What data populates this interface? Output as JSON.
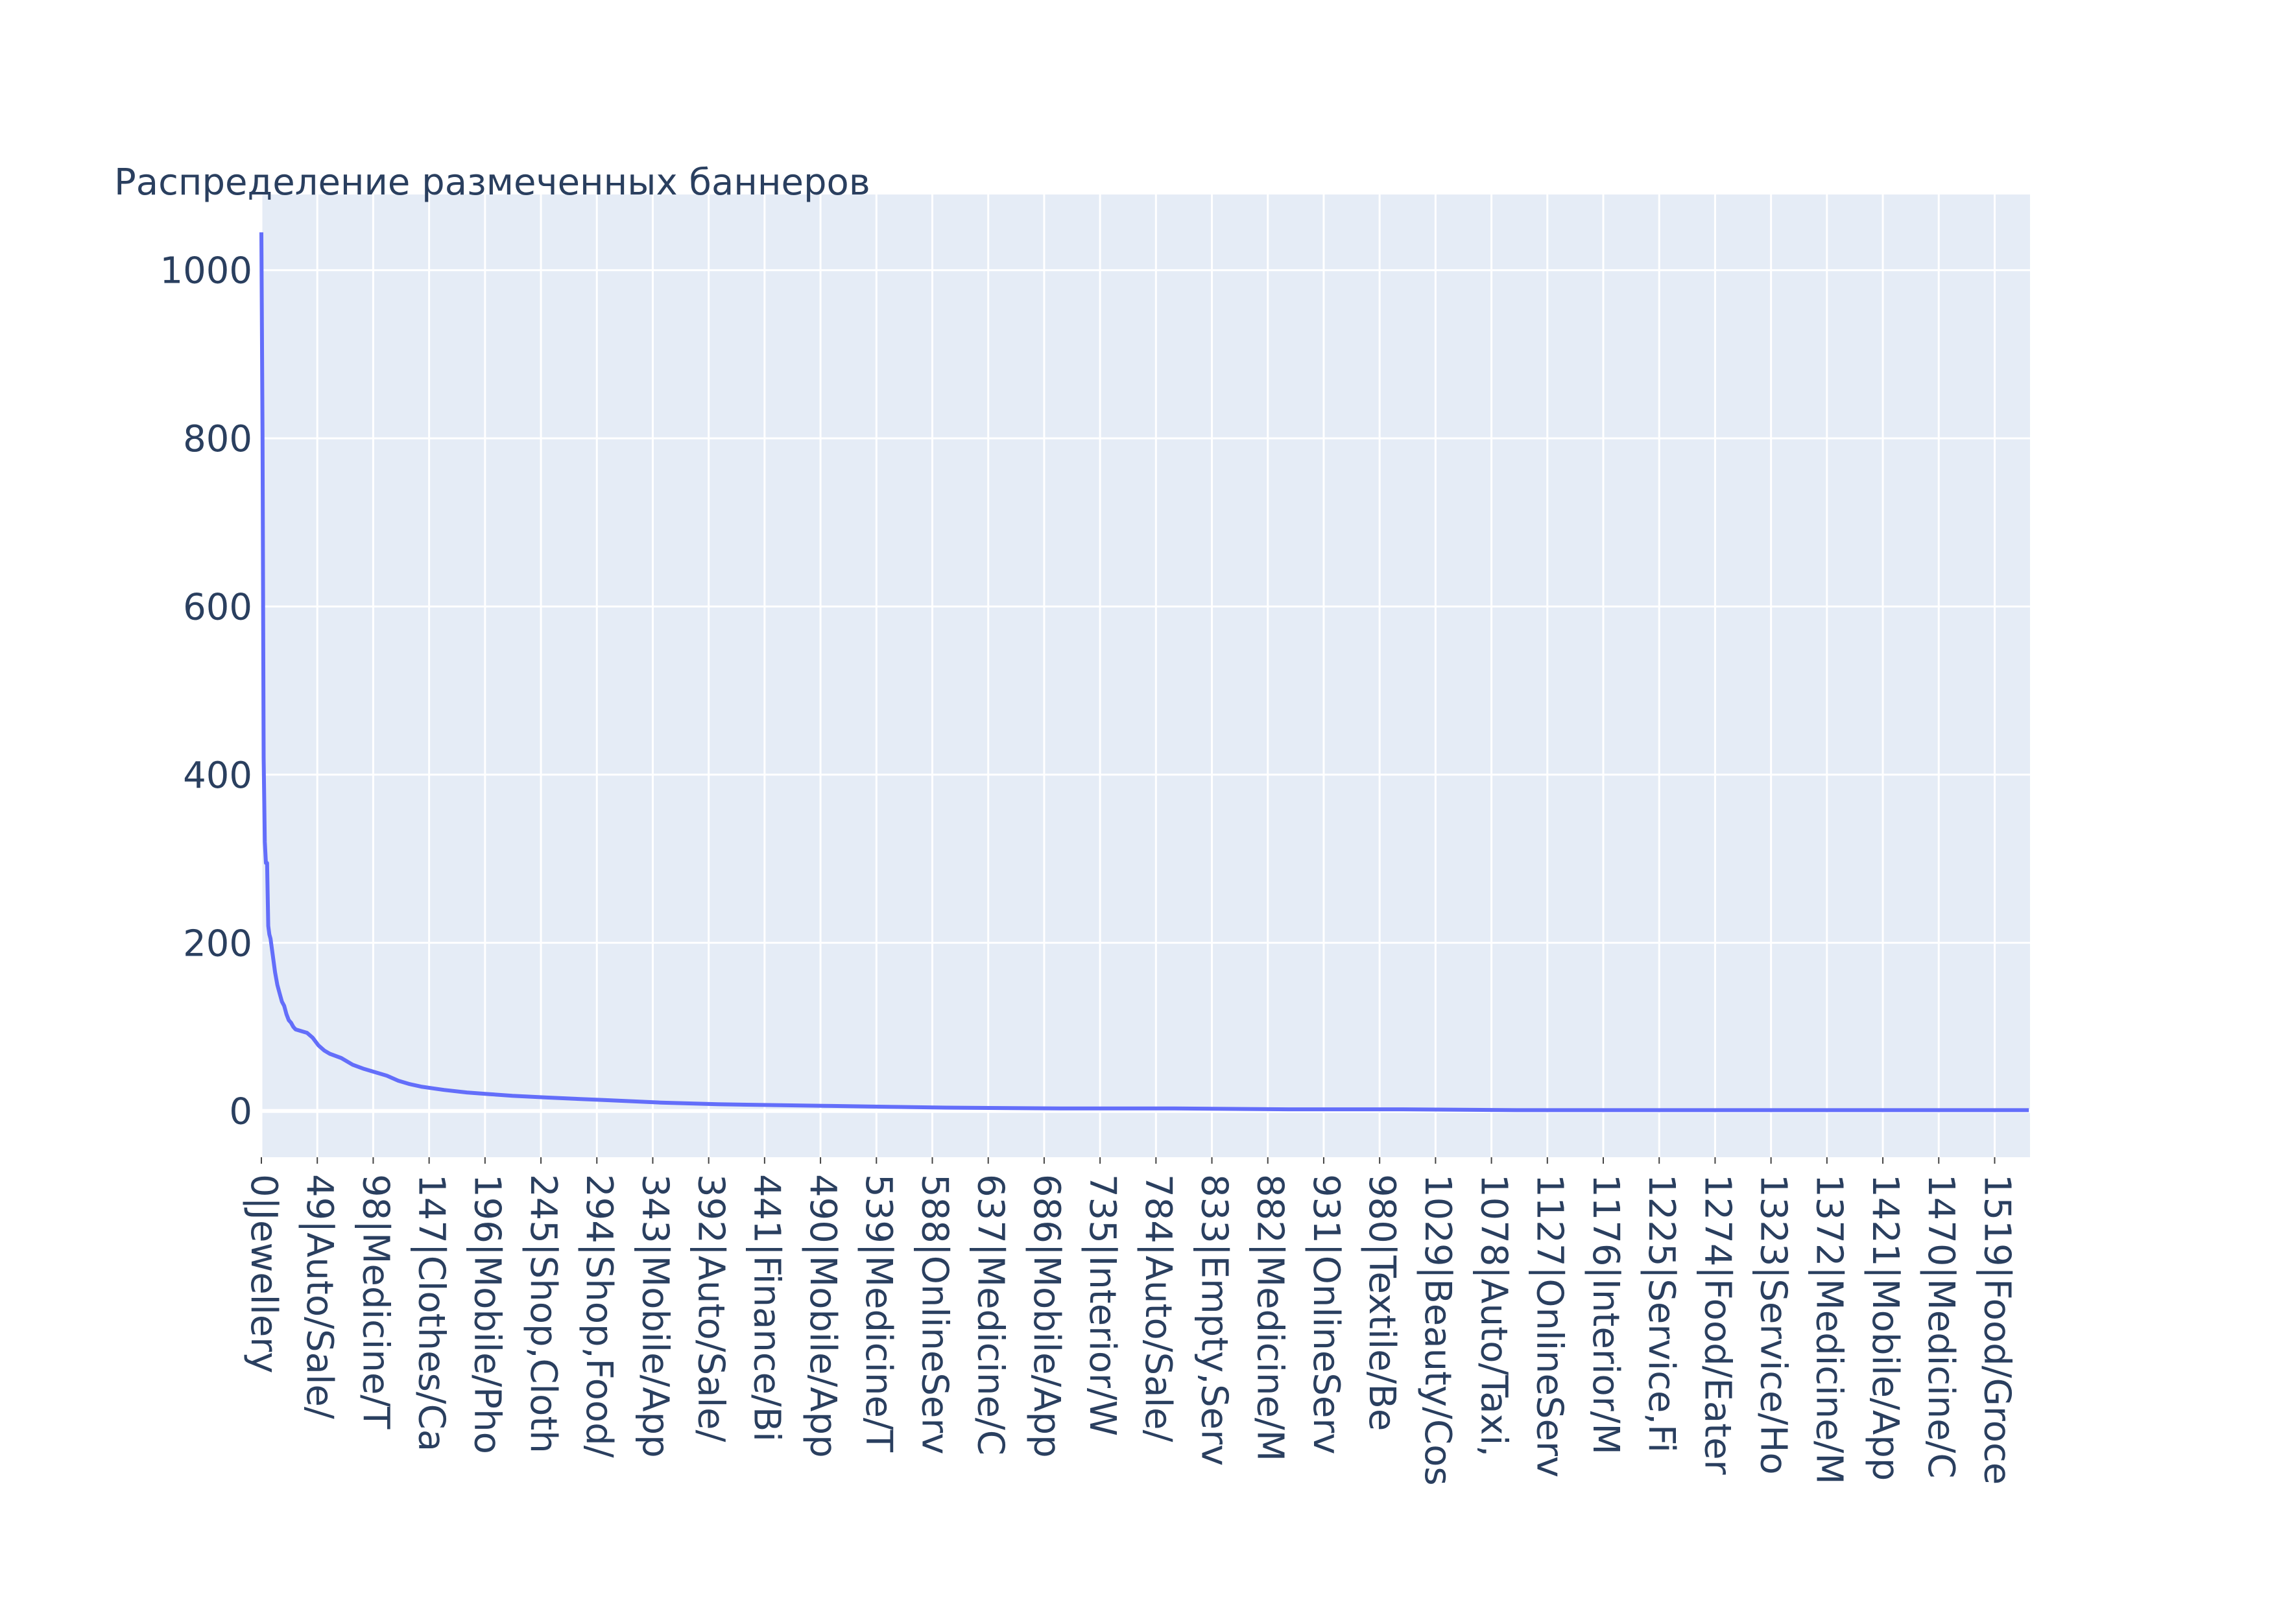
{
  "chart_data": {
    "type": "line",
    "title": "Распределение размеченных баннеров",
    "xlabel": "",
    "ylabel": "",
    "ylim": [
      -55,
      1090
    ],
    "xlim": [
      0,
      1550
    ],
    "grid": true,
    "legend": "none",
    "colors": {
      "line": "#636efa",
      "plot_bg": "#e5ecf6",
      "grid": "#ffffff",
      "text": "#2a3f5f"
    },
    "yticks": [
      0,
      200,
      400,
      600,
      800,
      1000
    ],
    "ytick_labels": [
      "0",
      "200",
      "400",
      "600",
      "800",
      "1000"
    ],
    "xticks": [
      0,
      49,
      98,
      147,
      196,
      245,
      294,
      343,
      392,
      441,
      490,
      539,
      588,
      637,
      686,
      735,
      784,
      833,
      882,
      931,
      980,
      1029,
      1078,
      1127,
      1176,
      1225,
      1274,
      1323,
      1372,
      1421,
      1470,
      1519
    ],
    "xtick_labels": [
      "0|Jewellery",
      "49|Auto/Sale/",
      "98|Medicine/T",
      "147|Clothes/Ca",
      "196|Mobile/Pho",
      "245|Shop,Cloth",
      "294|Shop,Food/",
      "343|Mobile/App",
      "392|Auto/Sale/",
      "441|Finance/Bi",
      "490|Mobile/App",
      "539|Medicine/T",
      "588|OnlineServ",
      "637|Medicine/C",
      "686|Mobile/App",
      "735|Interior/W",
      "784|Auto/Sale/",
      "833|Empty,Serv",
      "882|Medicine/M",
      "931|OnlineServ",
      "980|Textile/Be",
      "1029|Beauty/Cos",
      "1078|Auto/Taxi,",
      "1127|OnlineServ",
      "1176|Interior/M",
      "1225|Service,Fi",
      "1274|Food/Eater",
      "1323|Service/Ho",
      "1372|Medicine/M",
      "1421|Mobile/App",
      "1470|Medicine/C",
      "1519|Food/Groce"
    ],
    "series": [
      {
        "x": [
          0,
          1,
          2,
          3,
          4,
          5,
          6,
          7,
          8,
          10,
          12,
          14,
          16,
          18,
          20,
          22,
          24,
          26,
          28,
          30,
          35,
          40,
          45,
          50,
          55,
          60,
          70,
          80,
          90,
          100,
          110,
          120,
          130,
          140,
          150,
          160,
          180,
          200,
          220,
          250,
          300,
          350,
          400,
          450,
          500,
          550,
          600,
          700,
          800,
          900,
          1000,
          1100,
          1200,
          1300,
          1400,
          1500,
          1549
        ],
        "y": [
          1045,
          800,
          420,
          320,
          295,
          295,
          220,
          210,
          205,
          185,
          165,
          150,
          140,
          130,
          125,
          115,
          108,
          105,
          100,
          97,
          95,
          93,
          87,
          78,
          72,
          68,
          63,
          55,
          50,
          46,
          42,
          36,
          32,
          29,
          27,
          25,
          22,
          20,
          18,
          16,
          13,
          10,
          8,
          7,
          6,
          5,
          4,
          3,
          3,
          2,
          2,
          1,
          1,
          1,
          1,
          1,
          1
        ]
      }
    ]
  }
}
